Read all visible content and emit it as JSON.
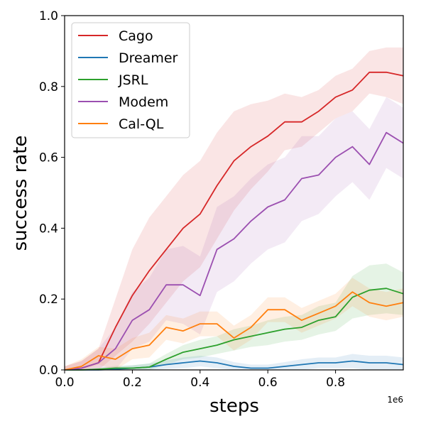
{
  "chart_data": {
    "type": "line",
    "title": "",
    "xlabel": "steps",
    "ylabel": "success rate",
    "x_offset_label": "1e6",
    "xlim": [
      0,
      1.0
    ],
    "ylim": [
      0,
      1.0
    ],
    "x_tick_labels": [
      "0.0",
      "0.2",
      "0.4",
      "0.6",
      "0.8"
    ],
    "x_tick_values": [
      0,
      0.2,
      0.4,
      0.6,
      0.8
    ],
    "y_tick_labels": [
      "0.0",
      "0.2",
      "0.4",
      "0.6",
      "0.8",
      "1.0"
    ],
    "y_tick_values": [
      0,
      0.2,
      0.4,
      0.6,
      0.8,
      1.0
    ],
    "grid": false,
    "legend_position": "top-left",
    "x": [
      0,
      0.05,
      0.1,
      0.15,
      0.2,
      0.25,
      0.3,
      0.35,
      0.4,
      0.45,
      0.5,
      0.55,
      0.6,
      0.65,
      0.7,
      0.75,
      0.8,
      0.85,
      0.9,
      0.95,
      1.0
    ],
    "series": [
      {
        "name": "Cago",
        "color": "#d62728",
        "values": [
          0,
          0.005,
          0.02,
          0.12,
          0.21,
          0.28,
          0.34,
          0.4,
          0.44,
          0.52,
          0.59,
          0.63,
          0.66,
          0.7,
          0.7,
          0.73,
          0.77,
          0.79,
          0.84,
          0.84,
          0.83
        ],
        "band": [
          0.01,
          0.02,
          0.04,
          0.08,
          0.13,
          0.15,
          0.15,
          0.15,
          0.15,
          0.15,
          0.14,
          0.12,
          0.1,
          0.08,
          0.07,
          0.06,
          0.06,
          0.06,
          0.06,
          0.07,
          0.08
        ]
      },
      {
        "name": "Dreamer",
        "color": "#1f77b4",
        "values": [
          0,
          0,
          0,
          0.002,
          0.005,
          0.008,
          0.015,
          0.02,
          0.025,
          0.02,
          0.01,
          0.005,
          0.005,
          0.01,
          0.015,
          0.02,
          0.02,
          0.025,
          0.02,
          0.02,
          0.015
        ],
        "band": [
          0,
          0.002,
          0.004,
          0.006,
          0.008,
          0.01,
          0.012,
          0.015,
          0.015,
          0.015,
          0.012,
          0.01,
          0.01,
          0.012,
          0.015,
          0.015,
          0.015,
          0.02,
          0.02,
          0.02,
          0.02
        ]
      },
      {
        "name": "JSRL",
        "color": "#2ca02c",
        "values": [
          0,
          0,
          0.002,
          0.005,
          0.005,
          0.008,
          0.03,
          0.05,
          0.06,
          0.07,
          0.085,
          0.095,
          0.105,
          0.115,
          0.12,
          0.14,
          0.15,
          0.205,
          0.225,
          0.23,
          0.215
        ],
        "band": [
          0,
          0.002,
          0.004,
          0.006,
          0.008,
          0.01,
          0.015,
          0.02,
          0.025,
          0.025,
          0.03,
          0.03,
          0.035,
          0.035,
          0.035,
          0.04,
          0.04,
          0.06,
          0.07,
          0.07,
          0.06
        ]
      },
      {
        "name": "Modem",
        "color": "#9b4fb0",
        "values": [
          0,
          0.005,
          0.02,
          0.06,
          0.14,
          0.17,
          0.24,
          0.24,
          0.21,
          0.34,
          0.37,
          0.42,
          0.46,
          0.48,
          0.54,
          0.55,
          0.6,
          0.63,
          0.58,
          0.67,
          0.64
        ],
        "band": [
          0.01,
          0.02,
          0.04,
          0.06,
          0.08,
          0.09,
          0.1,
          0.11,
          0.11,
          0.12,
          0.12,
          0.12,
          0.12,
          0.12,
          0.12,
          0.11,
          0.11,
          0.1,
          0.1,
          0.1,
          0.1
        ]
      },
      {
        "name": "Cal-QL",
        "color": "#ff7f0e",
        "values": [
          0,
          0.01,
          0.04,
          0.03,
          0.06,
          0.07,
          0.12,
          0.11,
          0.13,
          0.13,
          0.09,
          0.12,
          0.17,
          0.17,
          0.14,
          0.16,
          0.18,
          0.22,
          0.19,
          0.18,
          0.19
        ],
        "band": [
          0.01,
          0.02,
          0.025,
          0.03,
          0.03,
          0.035,
          0.035,
          0.035,
          0.035,
          0.035,
          0.035,
          0.035,
          0.035,
          0.035,
          0.035,
          0.035,
          0.035,
          0.04,
          0.04,
          0.04,
          0.04
        ]
      }
    ]
  }
}
